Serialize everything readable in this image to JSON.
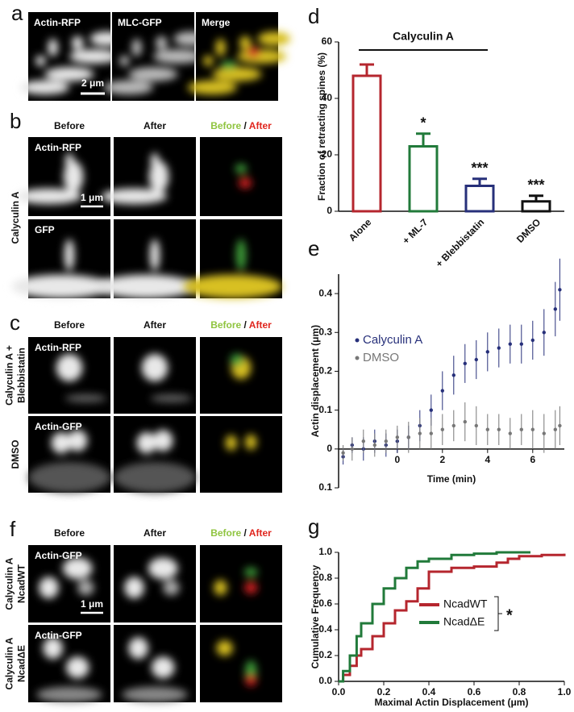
{
  "panels": {
    "a": {
      "letter": "a",
      "tiles": [
        "Actin-RFP",
        "MLC-GFP",
        "Merge"
      ],
      "scale_bar": "2 μm"
    },
    "b": {
      "letter": "b",
      "columns": [
        "Before",
        "After"
      ],
      "merge": [
        "Before",
        "/",
        "After"
      ],
      "rows": [
        "Actin-RFP",
        "GFP"
      ],
      "conditions": [
        [
          "Calyculin A"
        ]
      ],
      "scale_bar": "1 μm"
    },
    "c": {
      "letter": "c",
      "columns": [
        "Before",
        "After"
      ],
      "merge": [
        "Before",
        "/",
        "After"
      ],
      "rows": [
        "Actin-RFP",
        "Actin-GFP"
      ],
      "conditions": [
        [
          "Calyculin A +",
          "Blebbistatin"
        ],
        [
          "DMSO"
        ]
      ]
    },
    "f": {
      "letter": "f",
      "columns": [
        "Before",
        "After"
      ],
      "merge": [
        "Before",
        "/",
        "After"
      ],
      "rows": [
        "Actin-GFP",
        "Actin-GFP"
      ],
      "conditions": [
        [
          "Calyculin A",
          "NcadWT"
        ],
        [
          "Calyculin A",
          "NcadΔE"
        ]
      ],
      "scale_bar": "1 μm"
    }
  },
  "chart_data": [
    {
      "type": "bar",
      "panel_label": "d",
      "title": "Calyculin A",
      "ylabel": "Fraction of retracting spines (%)",
      "categories": [
        "Alone",
        "+ ML-7",
        "+ Blebbistatin",
        "DMSO"
      ],
      "values": [
        48,
        23,
        9,
        3.5
      ],
      "errors": [
        4,
        4.5,
        2.5,
        2
      ],
      "significance": [
        null,
        "*",
        "***",
        "***"
      ],
      "colors": [
        "#b5262e",
        "#217a3a",
        "#27307a",
        "#111111"
      ],
      "ylim": [
        0,
        60
      ],
      "yticks": [
        0,
        20,
        40,
        60
      ]
    },
    {
      "type": "errorbar",
      "panel_label": "e",
      "xlabel": "Time (min)",
      "ylabel": "Actin displacement (μm)",
      "x": [
        -2.4,
        -2,
        -1.5,
        -1,
        -0.5,
        0,
        0.5,
        1,
        1.5,
        2,
        2.5,
        3,
        3.5,
        4,
        4.5,
        5,
        5.5,
        6,
        6.5,
        7,
        7.2
      ],
      "series": [
        {
          "name": "Calyculin A",
          "color": "#27307a",
          "values": [
            -0.02,
            0.01,
            0.0,
            0.02,
            0.01,
            0.02,
            0.03,
            0.06,
            0.1,
            0.15,
            0.19,
            0.22,
            0.23,
            0.25,
            0.26,
            0.27,
            0.27,
            0.28,
            0.3,
            0.36,
            0.41
          ],
          "errors": [
            0.02,
            0.02,
            0.03,
            0.03,
            0.03,
            0.03,
            0.03,
            0.04,
            0.04,
            0.05,
            0.05,
            0.05,
            0.05,
            0.05,
            0.05,
            0.05,
            0.05,
            0.05,
            0.06,
            0.07,
            0.08
          ]
        },
        {
          "name": "DMSO",
          "color": "#777777",
          "values": [
            -0.01,
            0.0,
            0.02,
            0.01,
            0.02,
            0.03,
            0.03,
            0.04,
            0.04,
            0.05,
            0.06,
            0.07,
            0.06,
            0.05,
            0.05,
            0.04,
            0.05,
            0.05,
            0.04,
            0.05,
            0.06
          ],
          "errors": [
            0.02,
            0.03,
            0.03,
            0.03,
            0.03,
            0.03,
            0.04,
            0.04,
            0.04,
            0.04,
            0.04,
            0.05,
            0.05,
            0.04,
            0.04,
            0.04,
            0.04,
            0.05,
            0.05,
            0.05,
            0.05
          ]
        }
      ],
      "xlim": [
        -2.6,
        7.4
      ],
      "xticks": [
        0,
        2,
        4,
        6
      ],
      "ylim": [
        -0.1,
        0.45
      ],
      "yticks": [
        {
          "value": -0.1,
          "label": "0.1"
        },
        0,
        0.1,
        0.2,
        0.3,
        0.4
      ]
    },
    {
      "type": "line",
      "panel_label": "g",
      "xlabel": "Maximal Actin Displacement (μm)",
      "ylabel": "Cumulative Frequency",
      "significance": "*",
      "series": [
        {
          "name": "NcadWT",
          "color": "#b5262e",
          "x": [
            0,
            0.02,
            0.05,
            0.08,
            0.1,
            0.15,
            0.2,
            0.25,
            0.3,
            0.35,
            0.4,
            0.5,
            0.6,
            0.7,
            0.75,
            0.8,
            0.9,
            1.0
          ],
          "values": [
            0,
            0.05,
            0.12,
            0.2,
            0.25,
            0.35,
            0.45,
            0.55,
            0.62,
            0.72,
            0.85,
            0.88,
            0.89,
            0.92,
            0.95,
            0.97,
            0.98,
            0.99
          ]
        },
        {
          "name": "NcadΔE",
          "color": "#217a3a",
          "x": [
            0,
            0.02,
            0.05,
            0.08,
            0.1,
            0.15,
            0.2,
            0.25,
            0.3,
            0.35,
            0.4,
            0.5,
            0.6,
            0.7,
            0.85
          ],
          "values": [
            0,
            0.08,
            0.2,
            0.35,
            0.45,
            0.6,
            0.72,
            0.8,
            0.88,
            0.93,
            0.95,
            0.98,
            0.99,
            1.0,
            1.0
          ]
        }
      ],
      "xlim": [
        0,
        1
      ],
      "xticks": [
        {
          "value": 0,
          "label": "0.0"
        },
        0.2,
        0.4,
        0.6,
        0.8,
        {
          "value": 1,
          "label": "1.0"
        }
      ],
      "ylim": [
        0,
        1
      ],
      "yticks": [
        {
          "value": 0,
          "label": "0.0"
        },
        0.2,
        0.4,
        0.6,
        0.8,
        {
          "value": 1,
          "label": "1.0"
        }
      ]
    }
  ]
}
